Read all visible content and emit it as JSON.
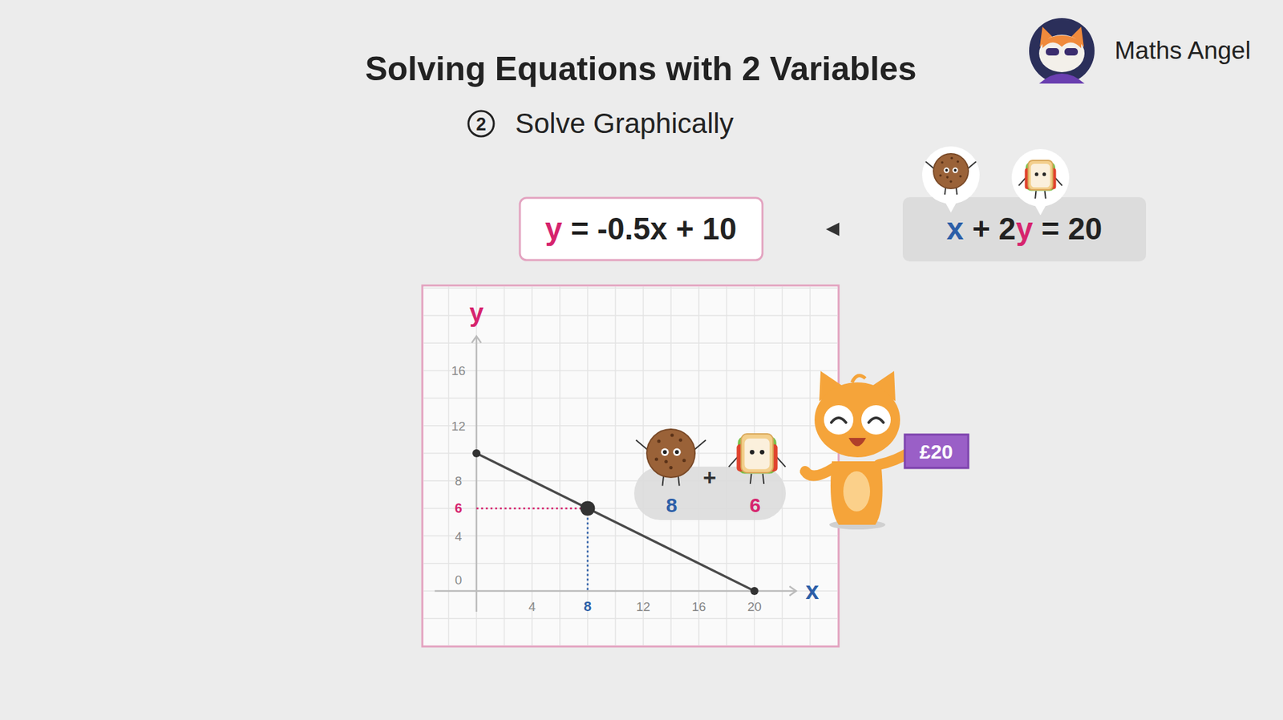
{
  "header": {
    "title": "Solving Equations with 2 Variables",
    "step": "2",
    "subtitle": "Solve Graphically"
  },
  "brand": {
    "name": "Maths Angel"
  },
  "equations": {
    "rearranged": [
      {
        "text": "y",
        "color": "#d6246e"
      },
      {
        "text": " = -0.5x + 10"
      }
    ],
    "original": [
      {
        "text": "x",
        "color": "#2d5fa8"
      },
      {
        "text": " + 2"
      },
      {
        "text": "y",
        "color": "#d6246e"
      },
      {
        "text": " = 20"
      }
    ]
  },
  "chart_data": {
    "type": "line",
    "x": [
      0,
      20
    ],
    "values": [
      10,
      0
    ],
    "color": "#4a4a4a",
    "xlabel": "x",
    "ylabel": "y",
    "xlim": [
      -3,
      23
    ],
    "ylim": [
      -1.5,
      18.5
    ],
    "xticks": [
      4,
      8,
      12,
      16,
      20
    ],
    "yticks": [
      0,
      4,
      8,
      12,
      16
    ],
    "grid": true,
    "marker": "circle",
    "highlight": {
      "x": 8,
      "y": 6
    }
  },
  "annotation": {
    "cookies": 8,
    "operator": "+",
    "sandwiches": 6,
    "price": "£20"
  }
}
